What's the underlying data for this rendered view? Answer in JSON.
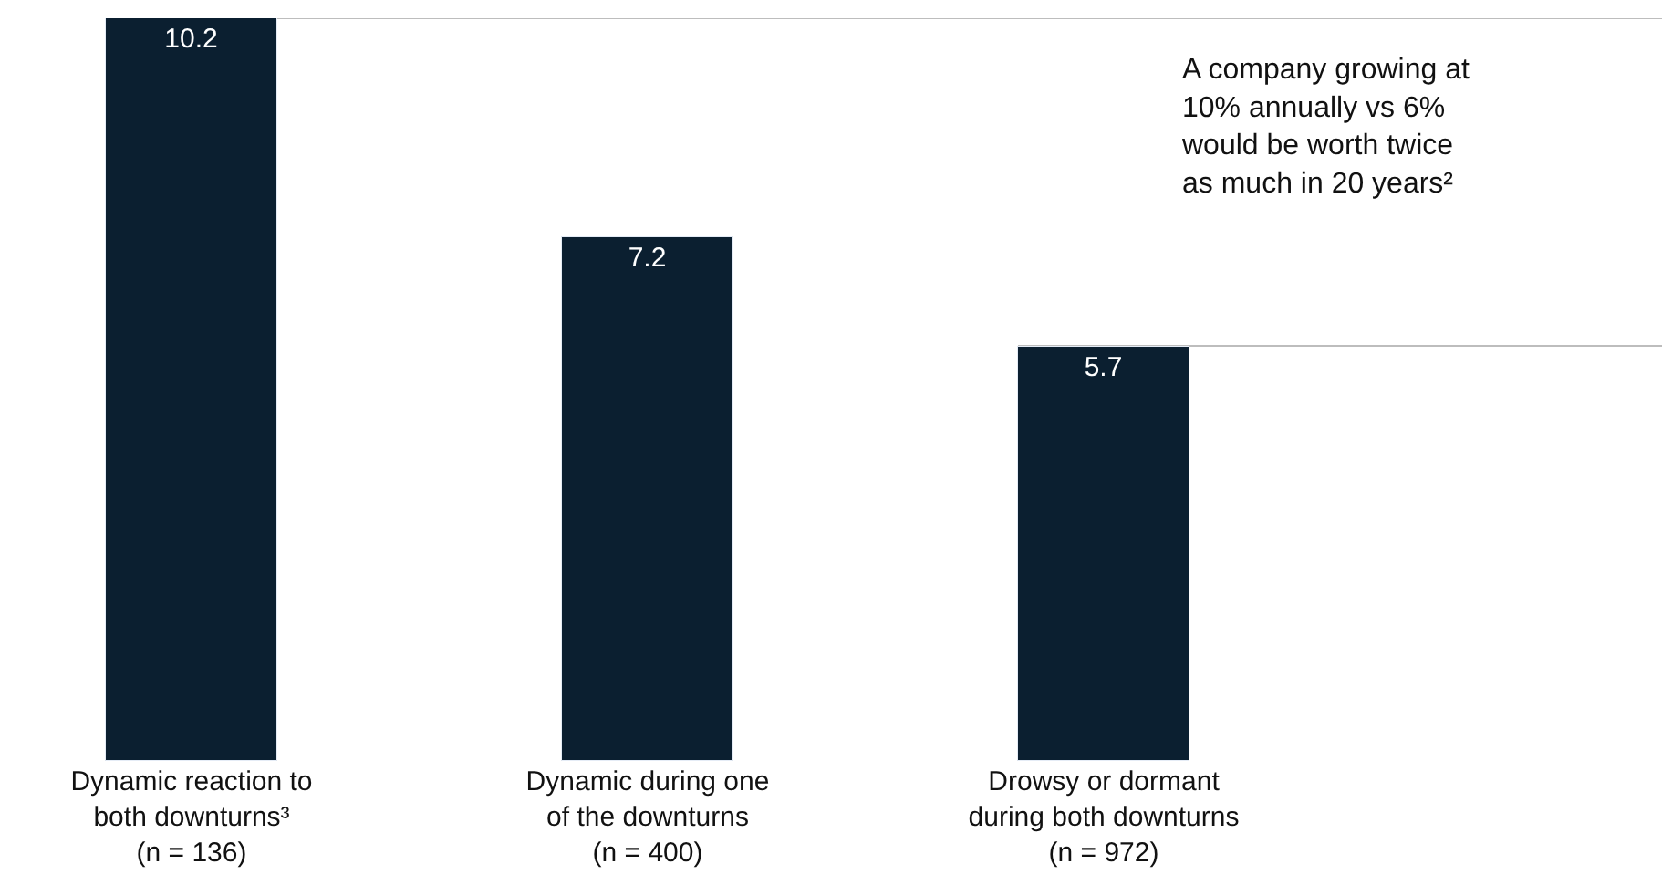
{
  "chart_data": {
    "type": "bar",
    "categories": [
      "Dynamic reaction to\nboth downturns³\n(n = 136)",
      "Dynamic during one\nof the downturns\n(n = 400)",
      "Drowsy or dormant\nduring both downturns\n(n = 972)"
    ],
    "values": [
      10.2,
      7.2,
      5.7
    ],
    "color": "#0b1f30",
    "ylim": [
      0,
      10.2
    ],
    "data_labels": true,
    "grid": false,
    "legend": false,
    "tick_labels": "x",
    "ref_lines": [
      {
        "axis": "y",
        "value": 10.2,
        "color": "#bdbdbd"
      },
      {
        "axis": "y",
        "value": 5.7,
        "color": "#bdbdbd"
      }
    ],
    "annotations": [
      "A company growing at\n10% annually vs 6%\nwould be worth twice\nas much in 20 years²"
    ]
  }
}
